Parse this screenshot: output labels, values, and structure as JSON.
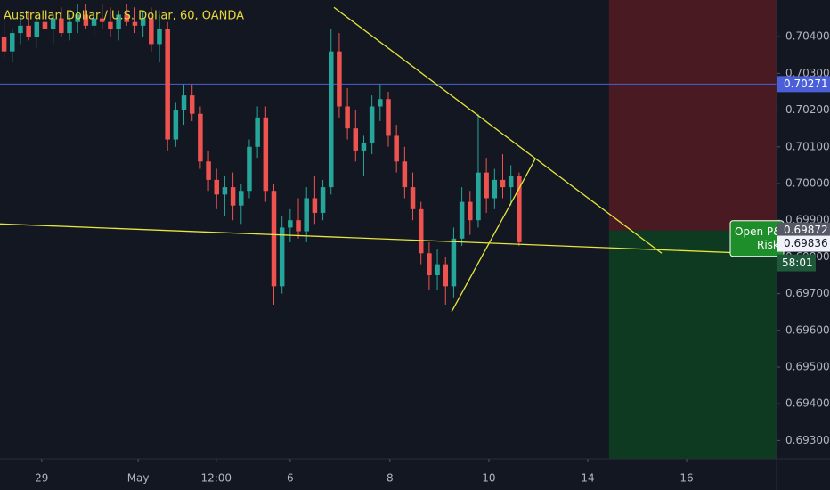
{
  "chart_data": {
    "type": "candlestick",
    "title": "Australian Dollar / U.S. Dollar, 60, OANDA",
    "x": [
      1,
      3,
      5,
      7,
      9,
      11,
      13,
      15,
      17,
      19,
      21,
      23,
      25,
      27,
      29,
      31,
      33,
      35,
      37,
      39,
      41,
      43,
      45,
      47,
      49,
      51,
      53,
      55,
      57,
      59,
      61,
      63,
      65,
      67,
      69,
      71,
      73,
      75,
      77,
      79,
      81,
      83,
      85,
      87,
      89,
      91,
      93,
      95,
      97,
      99,
      101,
      103,
      105,
      107,
      109,
      111,
      113,
      115,
      117,
      119,
      121,
      123,
      125,
      127
    ],
    "open": [
      0.704,
      0.7036,
      0.7041,
      0.7043,
      0.704,
      0.7044,
      0.7042,
      0.7045,
      0.7041,
      0.7044,
      0.7046,
      0.7043,
      0.7045,
      0.7044,
      0.7042,
      0.7046,
      0.7044,
      0.7043,
      0.7045,
      0.7038,
      0.7042,
      0.7012,
      0.702,
      0.7024,
      0.7019,
      0.7006,
      0.7001,
      0.6997,
      0.6999,
      0.6994,
      0.6998,
      0.701,
      0.7018,
      0.6998,
      0.6972,
      0.6988,
      0.699,
      0.6987,
      0.6996,
      0.6992,
      0.6999,
      0.7036,
      0.7021,
      0.7015,
      0.7009,
      0.7011,
      0.7021,
      0.7023,
      0.7013,
      0.7006,
      0.6999,
      0.6993,
      0.6981,
      0.6975,
      0.6978,
      0.6972,
      0.6985,
      0.6995,
      0.699,
      0.7003,
      0.6996,
      0.7001,
      0.6999,
      0.7002
    ],
    "high": [
      0.7044,
      0.7042,
      0.7046,
      0.7047,
      0.7045,
      0.7048,
      0.7046,
      0.7048,
      0.7046,
      0.7049,
      0.7049,
      0.7047,
      0.7049,
      0.7048,
      0.7047,
      0.7049,
      0.7048,
      0.7047,
      0.7048,
      0.7046,
      0.7044,
      0.7022,
      0.7027,
      0.7027,
      0.7021,
      0.7009,
      0.7004,
      0.7002,
      0.7003,
      0.7,
      0.7012,
      0.7021,
      0.7021,
      0.7,
      0.6991,
      0.6993,
      0.6996,
      0.6999,
      0.7002,
      0.7001,
      0.7042,
      0.7041,
      0.7026,
      0.702,
      0.7013,
      0.7024,
      0.7027,
      0.7025,
      0.7016,
      0.701,
      0.7003,
      0.6995,
      0.6984,
      0.6982,
      0.698,
      0.6988,
      0.6999,
      0.6998,
      0.7019,
      0.7007,
      0.7004,
      0.7008,
      0.7005,
      0.7003
    ],
    "low": [
      0.7034,
      0.7033,
      0.7038,
      0.7039,
      0.7037,
      0.7041,
      0.7038,
      0.704,
      0.7039,
      0.7041,
      0.7042,
      0.704,
      0.7042,
      0.704,
      0.7039,
      0.7043,
      0.7041,
      0.704,
      0.7036,
      0.7033,
      0.7009,
      0.701,
      0.7016,
      0.7017,
      0.7004,
      0.6998,
      0.6993,
      0.6991,
      0.699,
      0.6989,
      0.6996,
      0.7007,
      0.6995,
      0.6967,
      0.697,
      0.6984,
      0.6985,
      0.6984,
      0.6989,
      0.699,
      0.6997,
      0.7018,
      0.7012,
      0.7006,
      0.7002,
      0.7008,
      0.7017,
      0.701,
      0.7003,
      0.6996,
      0.699,
      0.6978,
      0.6971,
      0.6971,
      0.6967,
      0.6969,
      0.6983,
      0.6986,
      0.6988,
      0.6992,
      0.6993,
      0.6996,
      0.6994,
      0.6983
    ],
    "close": [
      0.7036,
      0.7041,
      0.7043,
      0.704,
      0.7044,
      0.7042,
      0.7045,
      0.7041,
      0.7044,
      0.7046,
      0.7043,
      0.7045,
      0.7044,
      0.7042,
      0.7046,
      0.7044,
      0.7043,
      0.7045,
      0.7038,
      0.7042,
      0.7012,
      0.702,
      0.7024,
      0.7019,
      0.7006,
      0.7001,
      0.6997,
      0.6999,
      0.6994,
      0.6998,
      0.701,
      0.7018,
      0.6998,
      0.6972,
      0.6988,
      0.699,
      0.6987,
      0.6996,
      0.6992,
      0.6999,
      0.7036,
      0.7021,
      0.7015,
      0.7009,
      0.7011,
      0.7021,
      0.7023,
      0.7013,
      0.7006,
      0.6999,
      0.6993,
      0.6981,
      0.6975,
      0.6978,
      0.6972,
      0.6985,
      0.6995,
      0.699,
      0.7003,
      0.6996,
      0.7001,
      0.6999,
      0.7002,
      0.6984
    ],
    "up_color": "#26a69a",
    "down_color": "#ef5350",
    "xlim": [
      0,
      190
    ],
    "ylim": [
      0.6925,
      0.705
    ],
    "xticks": [
      {
        "value": 10.2,
        "label": "29"
      },
      {
        "value": 33.8,
        "label": "May"
      },
      {
        "value": 52.9,
        "label": "12:00"
      },
      {
        "value": 71,
        "label": "6"
      },
      {
        "value": 95.4,
        "label": "8"
      },
      {
        "value": 119.6,
        "label": "10"
      },
      {
        "value": 143.8,
        "label": "14"
      },
      {
        "value": 168,
        "label": "16"
      }
    ],
    "yticks": [
      {
        "value": 0.693,
        "label": "0.69300"
      },
      {
        "value": 0.694,
        "label": "0.69400"
      },
      {
        "value": 0.695,
        "label": "0.69500"
      },
      {
        "value": 0.696,
        "label": "0.69600"
      },
      {
        "value": 0.697,
        "label": "0.69700"
      },
      {
        "value": 0.698,
        "label": "0.69800"
      },
      {
        "value": 0.699,
        "label": "0.69900"
      },
      {
        "value": 0.7,
        "label": "0.70000"
      },
      {
        "value": 0.701,
        "label": "0.70100"
      },
      {
        "value": 0.702,
        "label": "0.70200"
      },
      {
        "value": 0.703,
        "label": "0.70300"
      },
      {
        "value": 0.704,
        "label": "0.70400"
      }
    ],
    "trendlines": [
      {
        "x": [
          81.7,
          161.9
        ],
        "y": [
          0.7048,
          0.6981
        ],
        "color": "#e6e63c"
      },
      {
        "x": [
          0,
          190
        ],
        "y": [
          0.6989,
          0.69807
        ],
        "color": "#e6e63c"
      },
      {
        "x": [
          110.5,
          130.9
        ],
        "y": [
          0.69651,
          0.70066
        ],
        "color": "#e6e63c"
      }
    ],
    "hline": {
      "value": 0.70271,
      "label": "0.70271",
      "color": "#4a5fd8"
    },
    "position": {
      "x": [
        149,
        190
      ],
      "entry": {
        "value": 0.69872,
        "label": "0.69872"
      },
      "stop_color": "#4a1a22",
      "target_color": "#0f3a22"
    },
    "last_price": {
      "value": 0.69836,
      "label": "0.69836"
    },
    "countdown": "58:01",
    "position_label": [
      "Open P&",
      "Risk"
    ]
  }
}
